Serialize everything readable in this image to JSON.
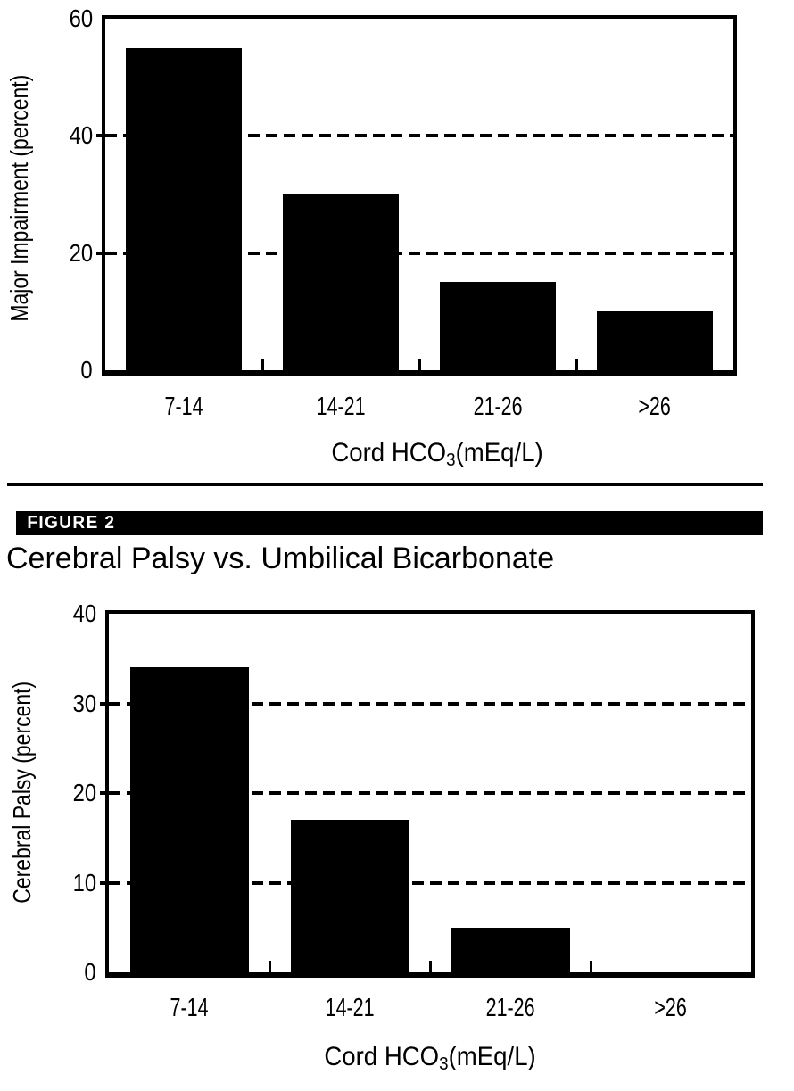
{
  "figure_label": "FIGURE 2",
  "title": "Cerebral Palsy vs. Umbilical Bicarbonate",
  "colors": {
    "background": "#ffffff",
    "bar": "#000000",
    "axis": "#000000",
    "banner_bg": "#000000",
    "banner_text": "#ffffff"
  },
  "chart_data": [
    {
      "type": "bar",
      "title": "",
      "categories": [
        "7-14",
        "14-21",
        "21-26",
        ">26"
      ],
      "values": [
        55,
        30,
        15,
        10
      ],
      "xlabel": "Cord HCO3(mEq/L)",
      "xlabel_parts": {
        "pre": "Cord HCO",
        "sub": "3",
        "post": "(mEq/L)"
      },
      "ylabel": "Major Impairment (percent)",
      "ylim": [
        0,
        60
      ],
      "yticks": [
        0,
        20,
        40,
        60
      ],
      "gridlines_at": [
        20,
        40
      ],
      "grid_style": "dashed",
      "legend": "none",
      "bar_color": "#000000"
    },
    {
      "type": "bar",
      "title": "",
      "categories": [
        "7-14",
        "14-21",
        "21-26",
        ">26"
      ],
      "values": [
        34,
        17,
        5,
        0
      ],
      "xlabel": "Cord HCO3(mEq/L)",
      "xlabel_parts": {
        "pre": "Cord HCO",
        "sub": "3",
        "post": "(mEq/L)"
      },
      "ylabel": "Cerebral Palsy (percent)",
      "ylim": [
        0,
        40
      ],
      "yticks": [
        0,
        10,
        20,
        30,
        40
      ],
      "gridlines_at": [
        10,
        20,
        30
      ],
      "grid_style": "dashed",
      "legend": "none",
      "bar_color": "#000000"
    }
  ]
}
